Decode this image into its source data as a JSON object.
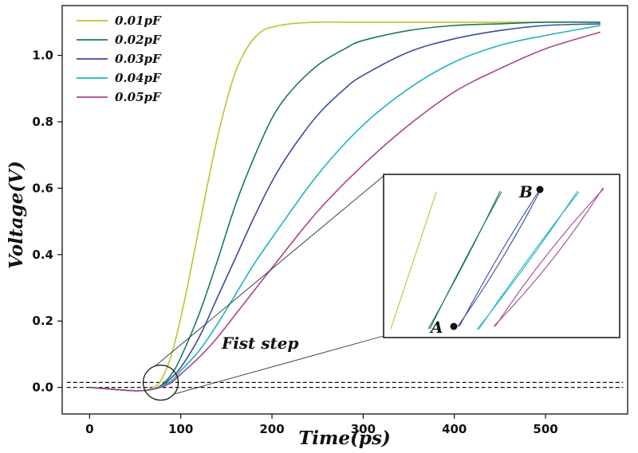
{
  "chart_data": {
    "type": "line",
    "title": "",
    "xlabel": "Time(ps)",
    "ylabel": "Voltage(V)",
    "xlim": [
      -30,
      590
    ],
    "ylim": [
      -0.08,
      1.15
    ],
    "xticks": [
      0,
      100,
      200,
      300,
      400,
      500
    ],
    "yticks": [
      0.0,
      0.2,
      0.4,
      0.6,
      0.8,
      1.0
    ],
    "xtick_labels": [
      "0",
      "100",
      "200",
      "300",
      "400",
      "500"
    ],
    "ytick_labels": [
      "0.0",
      "0.2",
      "0.4",
      "0.6",
      "0.8",
      "1.0"
    ],
    "grid": false,
    "legend_position": "top-left",
    "series": [
      {
        "name": "0.01pF",
        "color": "#c3c12e",
        "x": [
          0,
          50,
          70,
          80,
          90,
          100,
          110,
          120,
          130,
          140,
          150,
          160,
          170,
          180,
          190,
          200,
          220,
          250,
          300,
          400,
          500,
          560
        ],
        "y": [
          0,
          -0.01,
          0.0,
          0.03,
          0.1,
          0.21,
          0.34,
          0.48,
          0.62,
          0.75,
          0.86,
          0.95,
          1.01,
          1.05,
          1.075,
          1.085,
          1.095,
          1.1,
          1.1,
          1.1,
          1.1,
          1.1
        ]
      },
      {
        "name": "0.02pF",
        "color": "#1a7a58",
        "x": [
          0,
          50,
          70,
          80,
          90,
          100,
          120,
          140,
          160,
          180,
          200,
          220,
          250,
          280,
          300,
          350,
          400,
          450,
          500,
          560
        ],
        "y": [
          0,
          -0.01,
          -0.005,
          0.01,
          0.04,
          0.09,
          0.22,
          0.38,
          0.55,
          0.69,
          0.81,
          0.89,
          0.97,
          1.02,
          1.045,
          1.075,
          1.09,
          1.095,
          1.1,
          1.1
        ]
      },
      {
        "name": "0.03pF",
        "color": "#3a4ca0",
        "x": [
          0,
          50,
          70,
          80,
          90,
          100,
          120,
          140,
          160,
          180,
          200,
          220,
          250,
          280,
          300,
          350,
          400,
          450,
          500,
          560
        ],
        "y": [
          0,
          -0.01,
          -0.005,
          0.005,
          0.03,
          0.06,
          0.15,
          0.27,
          0.39,
          0.51,
          0.62,
          0.71,
          0.82,
          0.9,
          0.94,
          1.01,
          1.05,
          1.075,
          1.09,
          1.095
        ]
      },
      {
        "name": "0.04pF",
        "color": "#1eb4bd",
        "x": [
          0,
          50,
          70,
          80,
          90,
          100,
          120,
          140,
          160,
          180,
          200,
          250,
          300,
          350,
          400,
          450,
          500,
          560
        ],
        "y": [
          0,
          -0.01,
          -0.005,
          0.005,
          0.02,
          0.05,
          0.11,
          0.19,
          0.28,
          0.37,
          0.45,
          0.64,
          0.79,
          0.9,
          0.98,
          1.03,
          1.06,
          1.09
        ]
      },
      {
        "name": "0.05pF",
        "color": "#a8468c",
        "x": [
          0,
          50,
          70,
          80,
          90,
          100,
          120,
          140,
          160,
          180,
          200,
          250,
          300,
          350,
          400,
          450,
          500,
          560
        ],
        "y": [
          0,
          -0.01,
          -0.005,
          0.002,
          0.015,
          0.04,
          0.09,
          0.15,
          0.22,
          0.29,
          0.36,
          0.53,
          0.67,
          0.79,
          0.89,
          0.96,
          1.02,
          1.07
        ]
      }
    ],
    "reference_lines": [
      {
        "type": "horizontal",
        "y": 0.0,
        "style": "dashed",
        "color": "#111111"
      },
      {
        "type": "horizontal",
        "y": 0.015,
        "style": "dashed",
        "color": "#111111"
      }
    ],
    "annotations": [
      {
        "text": "Fist step",
        "x": 140,
        "y": 0.11
      },
      {
        "type": "circle",
        "x": 78,
        "y": 0.0,
        "label": ""
      }
    ],
    "inset": {
      "description_points": [
        {
          "label": "A",
          "series": "0.03pF"
        },
        {
          "label": "B",
          "series": "0.03pF"
        }
      ]
    }
  }
}
